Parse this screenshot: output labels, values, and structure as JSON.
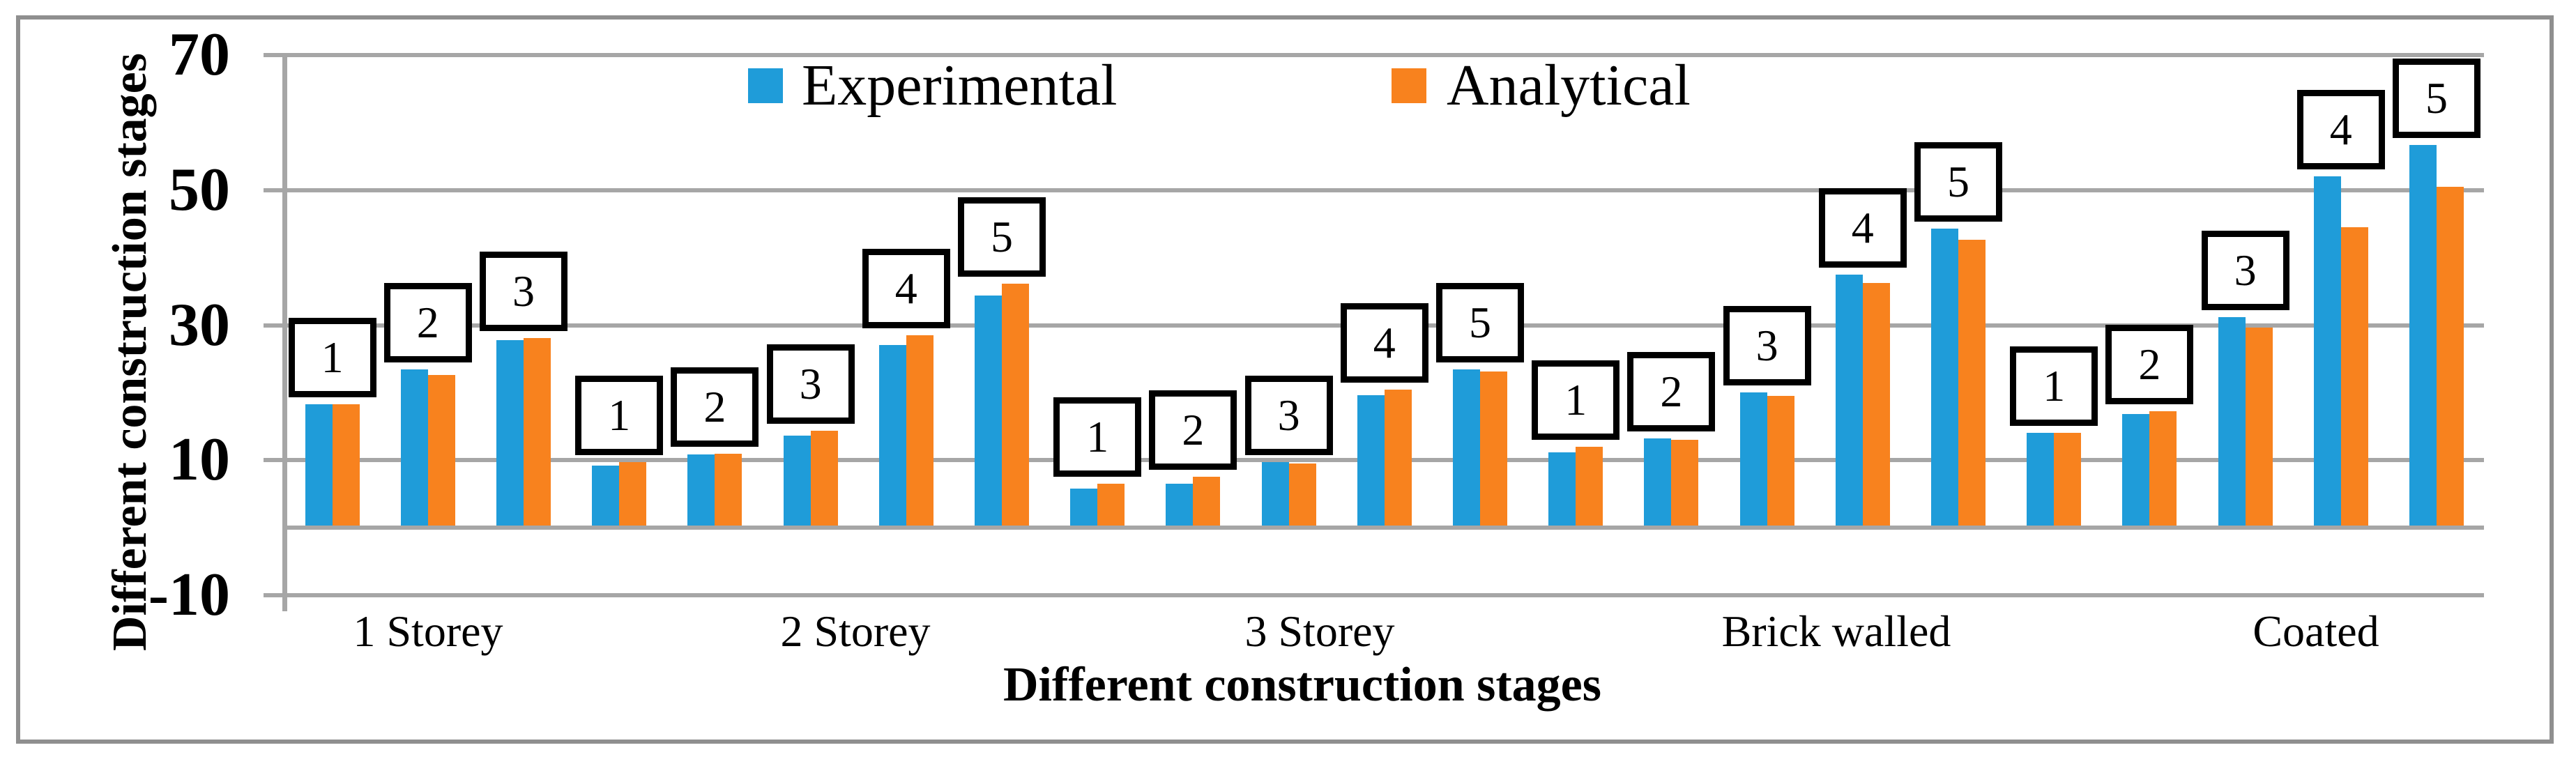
{
  "chart_data": {
    "type": "bar",
    "xlabel": "Different construction stages",
    "ylabel": "Different construction stages",
    "ylim": [
      -10,
      70
    ],
    "yticks": [
      70,
      50,
      30,
      10,
      -10
    ],
    "grid": true,
    "legend_position": "top-center-inside",
    "series_names": [
      "Experimental",
      "Analytical"
    ],
    "colors": {
      "experimental": "#1f9cd9",
      "analytical": "#f8821e",
      "gridline": "#a6a6a6",
      "figure_border": "#8f8f8f",
      "stage_label_box_border": "#000000",
      "stage_label_box_fill": "#ffffff"
    },
    "groups": [
      {
        "category": "1 Storey",
        "stages": [
          {
            "label": "1",
            "experimental": 18.3,
            "analytical": 18.3
          },
          {
            "label": "2",
            "experimental": 23.5,
            "analytical": 22.6
          },
          {
            "label": "3",
            "experimental": 27.8,
            "analytical": 28.1
          }
        ]
      },
      {
        "category": "2 Storey",
        "stages": [
          {
            "label": "1",
            "experimental": 9.2,
            "analytical": 9.7
          },
          {
            "label": "2",
            "experimental": 10.8,
            "analytical": 11.0
          },
          {
            "label": "3",
            "experimental": 13.6,
            "analytical": 14.4
          },
          {
            "label": "4",
            "experimental": 27.1,
            "analytical": 28.5
          },
          {
            "label": "5",
            "experimental": 34.4,
            "analytical": 36.2
          }
        ]
      },
      {
        "category": "3 Storey",
        "stages": [
          {
            "label": "1",
            "experimental": 5.8,
            "analytical": 6.5
          },
          {
            "label": "2",
            "experimental": 6.5,
            "analytical": 7.5
          },
          {
            "label": "3",
            "experimental": 9.7,
            "analytical": 9.5
          },
          {
            "label": "4",
            "experimental": 19.6,
            "analytical": 20.5
          },
          {
            "label": "5",
            "experimental": 23.5,
            "analytical": 23.1
          }
        ]
      },
      {
        "category": "Brick walled",
        "stages": [
          {
            "label": "1",
            "experimental": 11.2,
            "analytical": 12.0
          },
          {
            "label": "2",
            "experimental": 13.2,
            "analytical": 13.0
          },
          {
            "label": "3",
            "experimental": 20.0,
            "analytical": 19.5
          },
          {
            "label": "4",
            "experimental": 37.5,
            "analytical": 36.3
          },
          {
            "label": "5",
            "experimental": 44.3,
            "analytical": 42.7
          }
        ]
      },
      {
        "category": "Coated",
        "stages": [
          {
            "label": "1",
            "experimental": 14.0,
            "analytical": 14.0
          },
          {
            "label": "2",
            "experimental": 16.8,
            "analytical": 17.3
          },
          {
            "label": "3",
            "experimental": 31.2,
            "analytical": 29.6
          },
          {
            "label": "4",
            "experimental": 52.1,
            "analytical": 44.5
          },
          {
            "label": "5",
            "experimental": 56.7,
            "analytical": 50.5
          }
        ]
      }
    ]
  }
}
